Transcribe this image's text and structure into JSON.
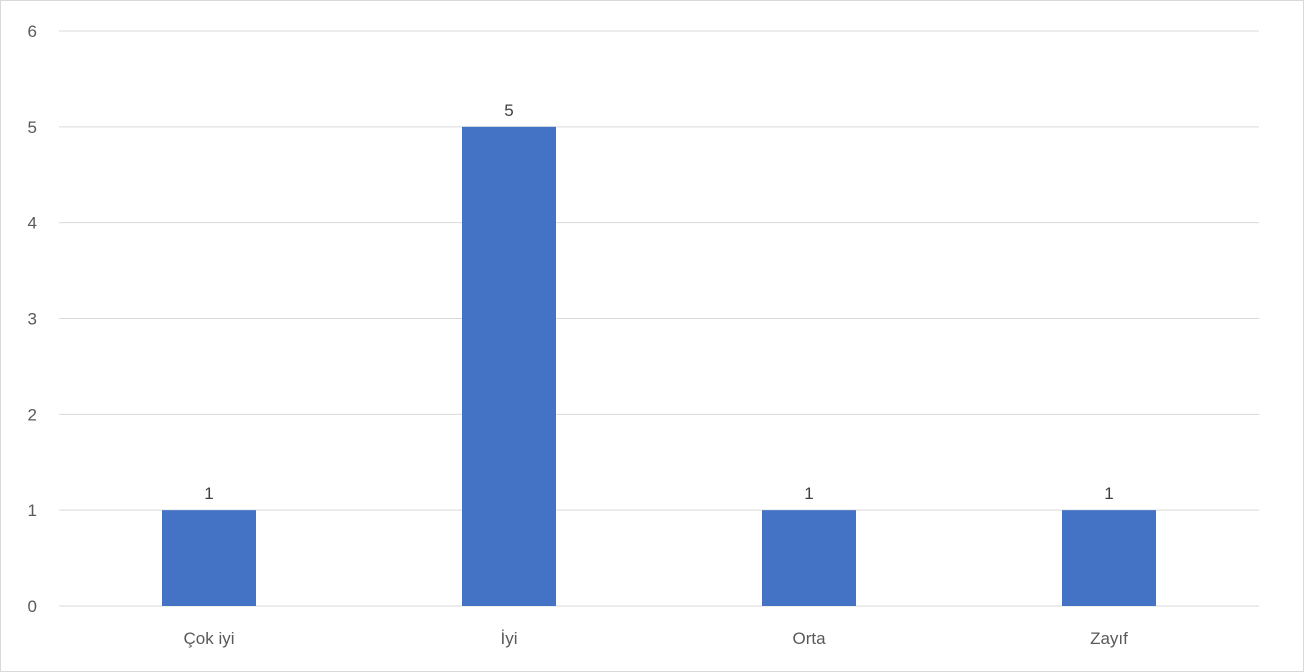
{
  "chart_data": {
    "type": "bar",
    "title": "",
    "xlabel": "",
    "ylabel": "",
    "categories": [
      "Çok iyi",
      "İyi",
      "Orta",
      "Zayıf"
    ],
    "values": [
      1,
      5,
      1,
      1
    ],
    "data_labels": [
      "1",
      "5",
      "1",
      "1"
    ],
    "ylim": [
      0,
      6
    ],
    "yticks": [
      0,
      1,
      2,
      3,
      4,
      5,
      6
    ],
    "grid": true,
    "legend": "none",
    "bar_color": "#4472c4",
    "grid_color": "#d9d9d9",
    "axis_text_color": "#595959"
  }
}
